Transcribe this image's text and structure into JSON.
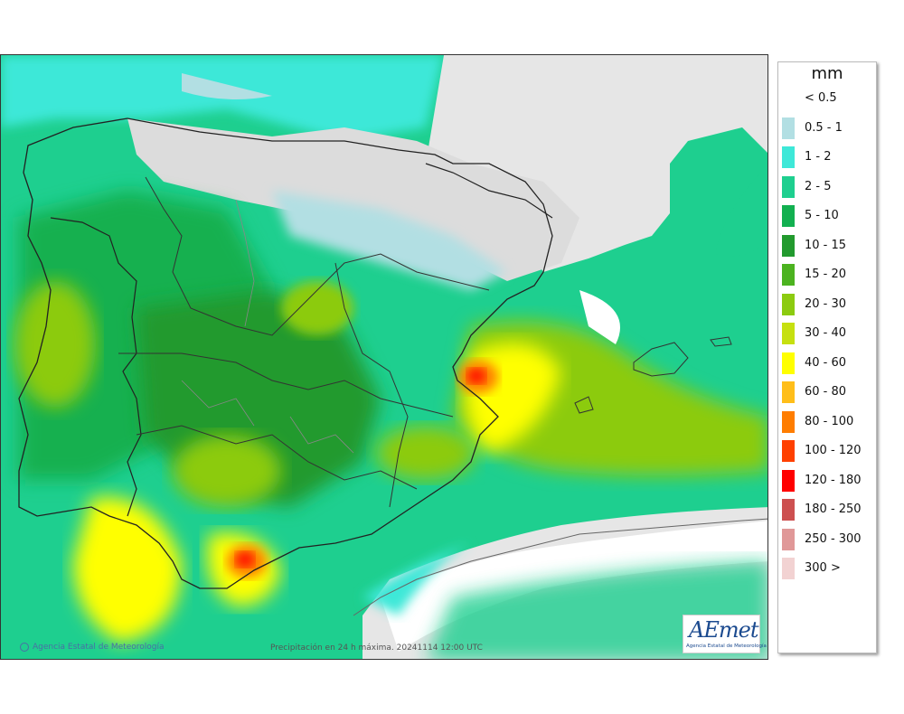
{
  "map": {
    "caption": "Precipitación en 24 h máxima. 20241114 12:00 UTC",
    "agency": "Agencia Estatal de Meteorología",
    "logo": {
      "wordmark": "AEmet",
      "subtitle": "Agencia Estatal de Meteorología"
    },
    "colors": {
      "sea": "#ffffff",
      "land_dry": "#e6e6e6",
      "border": "#222222",
      "province_border": "#888888"
    }
  },
  "legend": {
    "unit": "mm",
    "classes": [
      {
        "label": "< 0.5",
        "color": "#ffffff"
      },
      {
        "label": "0.5 - 1",
        "color": "#b2dfe3"
      },
      {
        "label": "1 - 2",
        "color": "#3ee8d8"
      },
      {
        "label": "2 - 5",
        "color": "#1ecf8f"
      },
      {
        "label": "5 - 10",
        "color": "#12b050"
      },
      {
        "label": "10 - 15",
        "color": "#229a2e"
      },
      {
        "label": "15 - 20",
        "color": "#4cb320"
      },
      {
        "label": "20 - 30",
        "color": "#8ccb10"
      },
      {
        "label": "30 - 40",
        "color": "#c6e010"
      },
      {
        "label": "40 - 60",
        "color": "#ffff00"
      },
      {
        "label": "60 - 80",
        "color": "#ffbe1a"
      },
      {
        "label": "80 - 100",
        "color": "#ff7d00"
      },
      {
        "label": "100 - 120",
        "color": "#ff4000"
      },
      {
        "label": "120 - 180",
        "color": "#ff0000"
      },
      {
        "label": "180 - 250",
        "color": "#cd5050"
      },
      {
        "label": "250 - 300",
        "color": "#e09898"
      },
      {
        "label": "300 >",
        "color": "#f2d2d2"
      }
    ]
  }
}
